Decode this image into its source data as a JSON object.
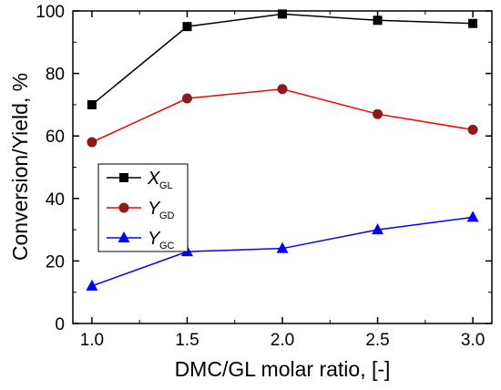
{
  "chart_data": {
    "type": "line",
    "x": [
      1.0,
      1.5,
      2.0,
      2.5,
      3.0
    ],
    "x_tick_labels": [
      "1.0",
      "1.5",
      "2.0",
      "2.5",
      "3.0"
    ],
    "y_tick_labels": [
      "0",
      "20",
      "40",
      "60",
      "80",
      "100"
    ],
    "xlabel": "DMC/GL molar ratio, [-]",
    "ylabel": "Conversion/Yield, %",
    "xlim": [
      0.9,
      3.1
    ],
    "ylim": [
      0,
      100
    ],
    "grid": false,
    "legend_position": "center-left",
    "series": [
      {
        "name": "X",
        "subscript": "GL",
        "marker": "square",
        "color": "#000000",
        "values": [
          70,
          95,
          99,
          97,
          96
        ]
      },
      {
        "name": "Y",
        "subscript": "GD",
        "marker": "circle",
        "color": "#ff0000",
        "marker_fill": "#8b1a1a",
        "values": [
          58,
          72,
          75,
          67,
          62
        ]
      },
      {
        "name": "Y",
        "subscript": "GC",
        "marker": "triangle",
        "color": "#0000ff",
        "values": [
          12,
          23,
          24,
          30,
          34
        ]
      }
    ]
  }
}
